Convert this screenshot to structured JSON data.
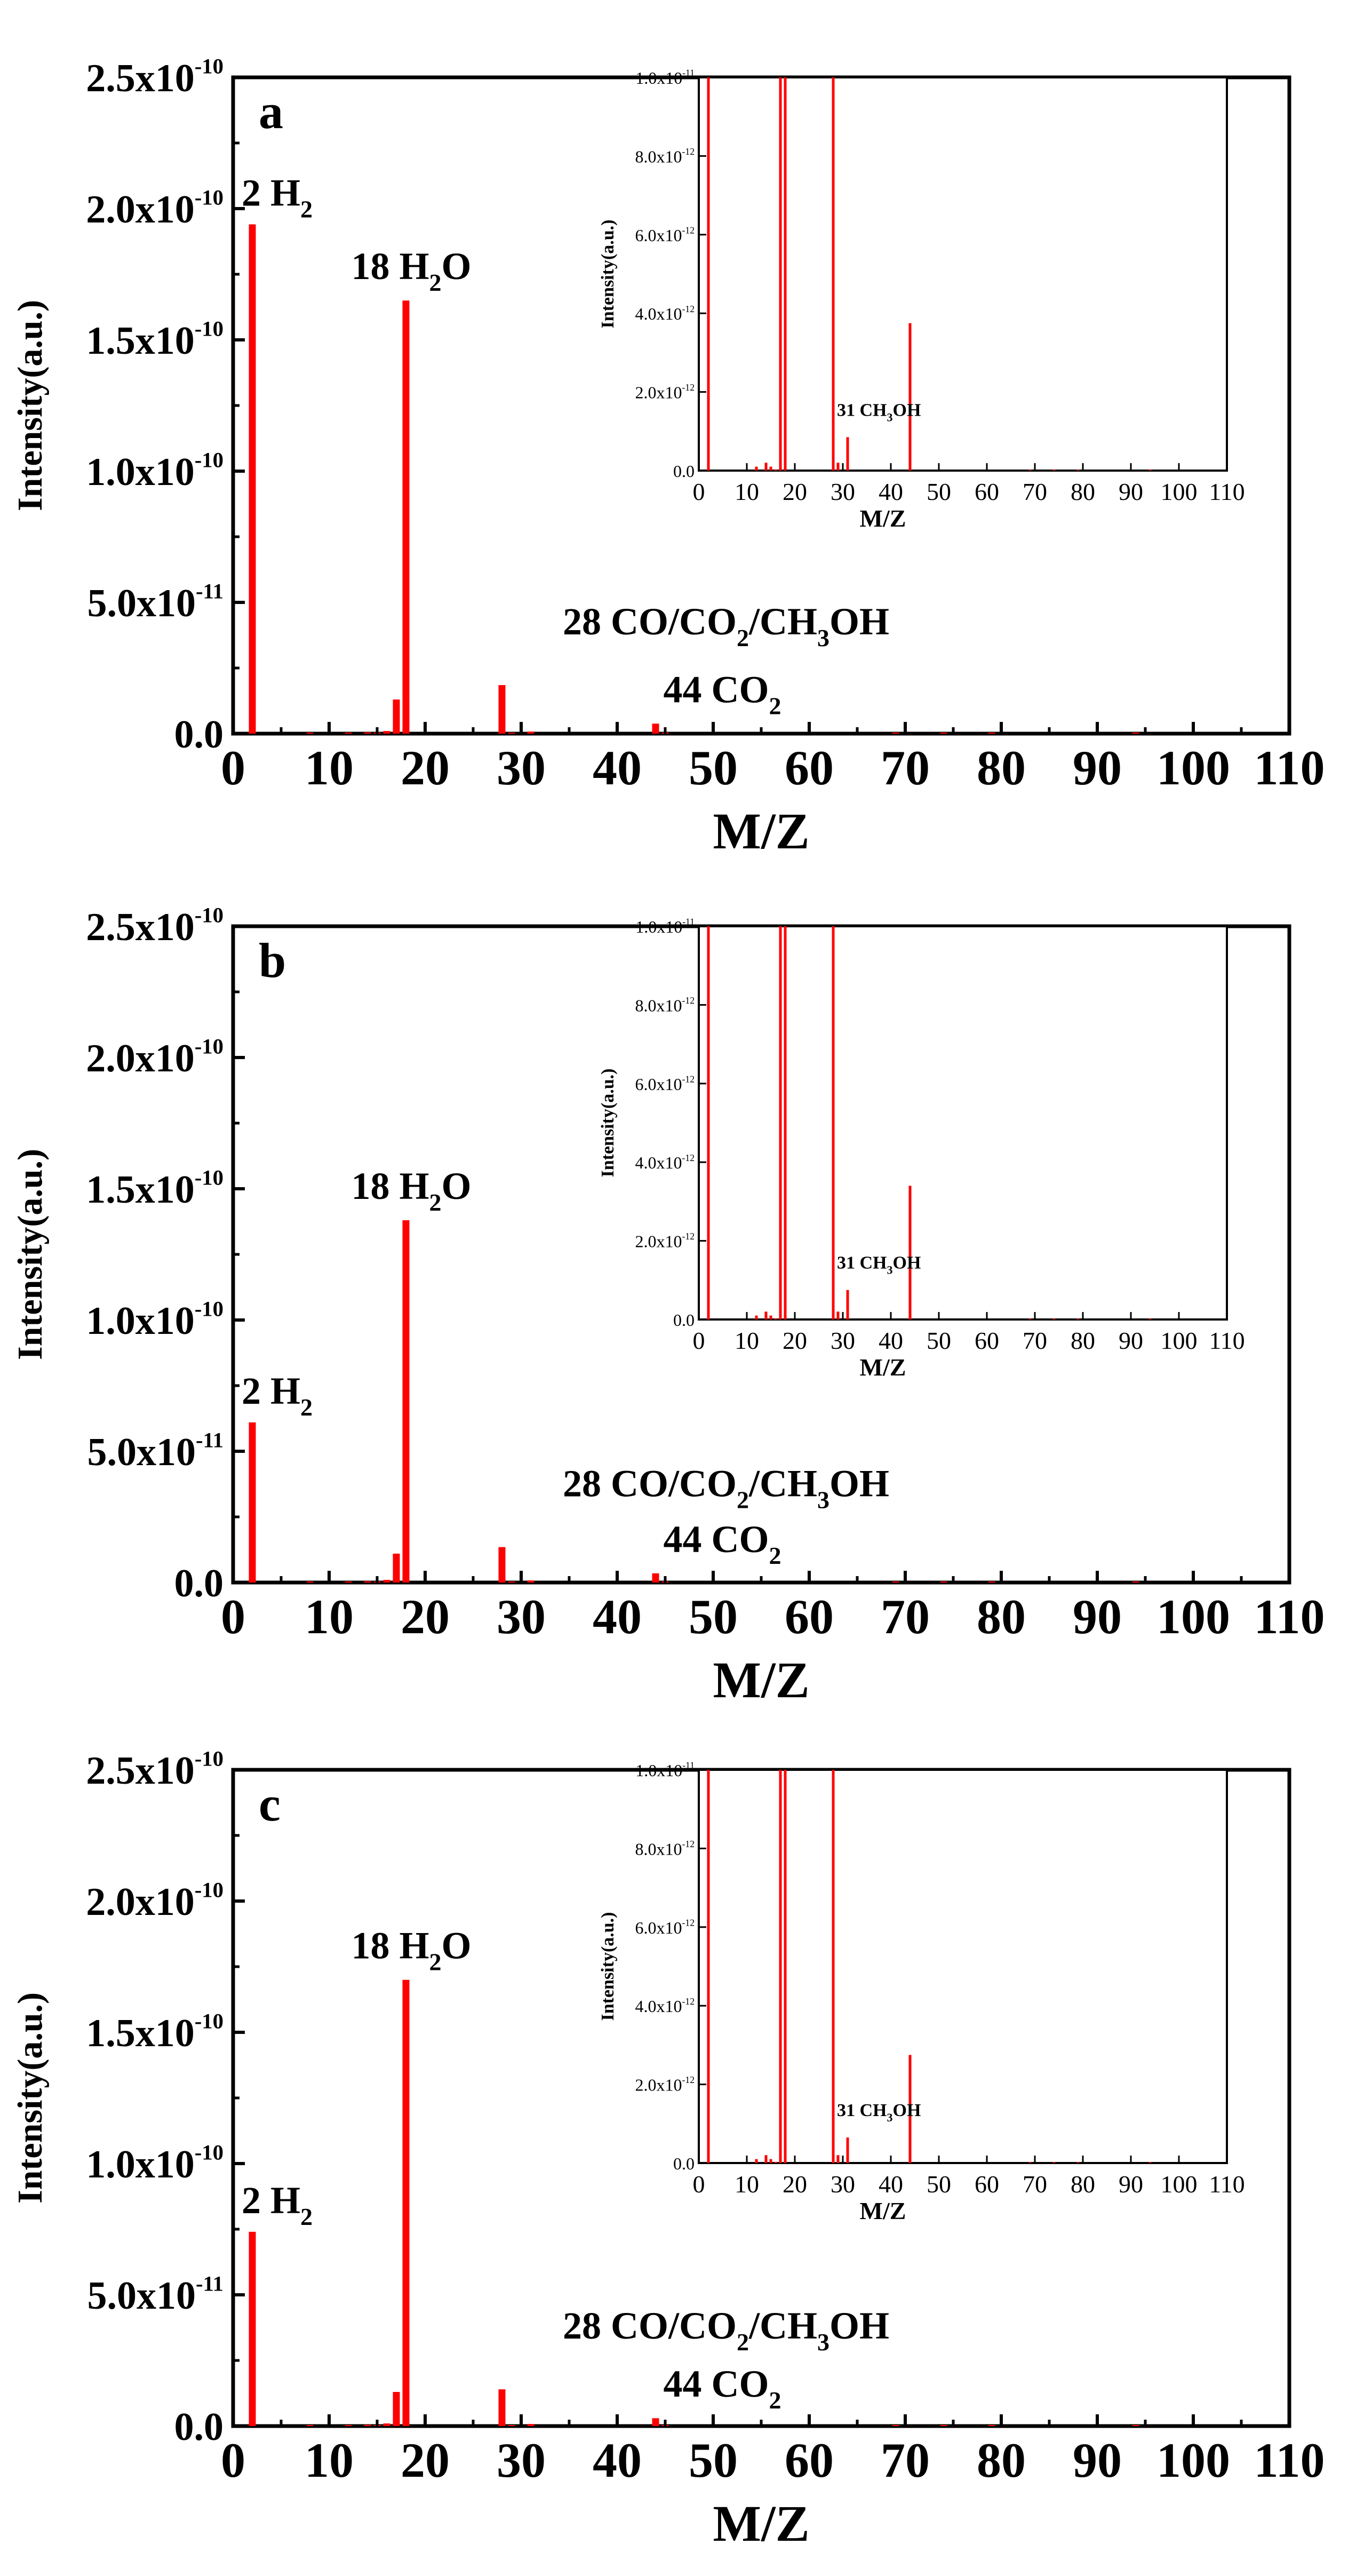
{
  "figure": {
    "description_label": "Mass spectra (intensity vs M/Z) for samples a, b, c"
  },
  "chart_data": [
    {
      "type": "bar",
      "panel": "a",
      "xlabel": "M/Z",
      "ylabel": "Intensity(a.u.)",
      "xlim": [
        0,
        110
      ],
      "ylim": [
        0,
        2.5e-10
      ],
      "xticks": [
        "0",
        "10",
        "20",
        "30",
        "40",
        "50",
        "60",
        "70",
        "80",
        "90",
        "100",
        "110"
      ],
      "yticks": [
        {
          "base": "0.0",
          "exp": ""
        },
        {
          "base": "5.0x10",
          "exp": "-11"
        },
        {
          "base": "1.0x10",
          "exp": "-10"
        },
        {
          "base": "1.5x10",
          "exp": "-10"
        },
        {
          "base": "2.0x10",
          "exp": "-10"
        },
        {
          "base": "2.5x10",
          "exp": "-10"
        }
      ],
      "x": [
        2,
        8,
        12,
        14,
        15,
        16,
        17,
        18,
        28,
        29,
        31,
        44,
        45,
        69,
        74,
        79,
        94
      ],
      "values": [
        1.94e-10,
        3e-13,
        4e-13,
        5e-13,
        3e-13,
        1e-12,
        1.3e-11,
        1.65e-10,
        1.85e-11,
        4e-13,
        8e-13,
        3.8e-12,
        2e-13,
        2e-13,
        2e-13,
        2e-13,
        2e-13
      ],
      "annotations": [
        {
          "x": 2,
          "text": "2 H",
          "sub": "2",
          "rest": ""
        },
        {
          "x": 18,
          "text": "18 H",
          "sub": "2",
          "rest": "O"
        },
        {
          "x": 28,
          "text": "28 CO/CO",
          "sub": "2",
          "rest": "/CH",
          "sub2": "3",
          "rest2": "OH"
        },
        {
          "x": 44,
          "text": "44 CO",
          "sub": "2",
          "rest": ""
        }
      ],
      "inset": {
        "xlabel": "M/Z",
        "ylabel": "Intensity(a.u.)",
        "xlim": [
          0,
          110
        ],
        "ylim": [
          0,
          1e-11
        ],
        "xticks": [
          "0",
          "10",
          "20",
          "30",
          "40",
          "50",
          "60",
          "70",
          "80",
          "90",
          "100",
          "110"
        ],
        "yticks": [
          {
            "base": "0.0",
            "exp": ""
          },
          {
            "base": "2.0x10",
            "exp": "-12"
          },
          {
            "base": "4.0x10",
            "exp": "-12"
          },
          {
            "base": "6.0x10",
            "exp": "-12"
          },
          {
            "base": "8.0x10",
            "exp": "-12"
          },
          {
            "base": "1.0x10",
            "exp": "-11"
          }
        ],
        "x": [
          2,
          12,
          14,
          15,
          16,
          17,
          18,
          28,
          29,
          31,
          44,
          69,
          74,
          79,
          94
        ],
        "values": [
          1e-11,
          1e-13,
          2e-13,
          1e-13,
          3e-14,
          1e-11,
          1e-11,
          1e-11,
          2e-13,
          8.5e-13,
          3.75e-12,
          2e-14,
          2e-14,
          2e-14,
          2e-14
        ],
        "annotation": {
          "x": 31,
          "text": "31 CH",
          "sub": "3",
          "rest": "OH"
        }
      }
    },
    {
      "type": "bar",
      "panel": "b",
      "xlabel": "M/Z",
      "ylabel": "Intensity(a.u.)",
      "xlim": [
        0,
        110
      ],
      "ylim": [
        0,
        2.5e-10
      ],
      "xticks": [
        "0",
        "10",
        "20",
        "30",
        "40",
        "50",
        "60",
        "70",
        "80",
        "90",
        "100",
        "110"
      ],
      "yticks": [
        {
          "base": "0.0",
          "exp": ""
        },
        {
          "base": "5.0x10",
          "exp": "-11"
        },
        {
          "base": "1.0x10",
          "exp": "-10"
        },
        {
          "base": "1.5x10",
          "exp": "-10"
        },
        {
          "base": "2.0x10",
          "exp": "-10"
        },
        {
          "base": "2.5x10",
          "exp": "-10"
        }
      ],
      "x": [
        2,
        8,
        12,
        14,
        15,
        16,
        17,
        18,
        28,
        29,
        31,
        44,
        45,
        69,
        74,
        79,
        94
      ],
      "values": [
        6.1e-11,
        3e-13,
        4e-13,
        5e-13,
        3e-13,
        1e-12,
        1.1e-11,
        1.38e-10,
        1.35e-11,
        4e-13,
        8e-13,
        3.5e-12,
        2e-13,
        2e-13,
        2e-13,
        2e-13,
        2e-13
      ],
      "annotations": [
        {
          "x": 2,
          "text": "2 H",
          "sub": "2",
          "rest": ""
        },
        {
          "x": 18,
          "text": "18 H",
          "sub": "2",
          "rest": "O"
        },
        {
          "x": 28,
          "text": "28 CO/CO",
          "sub": "2",
          "rest": "/CH",
          "sub2": "3",
          "rest2": "OH"
        },
        {
          "x": 44,
          "text": "44 CO",
          "sub": "2",
          "rest": ""
        }
      ],
      "inset": {
        "xlabel": "M/Z",
        "ylabel": "Intensity(a.u.)",
        "xlim": [
          0,
          110
        ],
        "ylim": [
          0,
          1e-11
        ],
        "xticks": [
          "0",
          "10",
          "20",
          "30",
          "40",
          "50",
          "60",
          "70",
          "80",
          "90",
          "100",
          "110"
        ],
        "yticks": [
          {
            "base": "0.0",
            "exp": ""
          },
          {
            "base": "2.0x10",
            "exp": "-12"
          },
          {
            "base": "4.0x10",
            "exp": "-12"
          },
          {
            "base": "6.0x10",
            "exp": "-12"
          },
          {
            "base": "8.0x10",
            "exp": "-12"
          },
          {
            "base": "1.0x10",
            "exp": "-11"
          }
        ],
        "x": [
          2,
          12,
          14,
          15,
          16,
          17,
          18,
          28,
          29,
          31,
          44,
          69,
          74,
          79,
          94
        ],
        "values": [
          1e-11,
          1e-13,
          2e-13,
          1e-13,
          3e-14,
          1e-11,
          1e-11,
          1e-11,
          2e-13,
          7.5e-13,
          3.4e-12,
          2e-14,
          2e-14,
          2e-14,
          2e-14
        ],
        "annotation": {
          "x": 31,
          "text": "31 CH",
          "sub": "3",
          "rest": "OH"
        }
      }
    },
    {
      "type": "bar",
      "panel": "c",
      "xlabel": "M/Z",
      "ylabel": "Intensity(a.u.)",
      "xlim": [
        0,
        110
      ],
      "ylim": [
        0,
        2.5e-10
      ],
      "xticks": [
        "0",
        "10",
        "20",
        "30",
        "40",
        "50",
        "60",
        "70",
        "80",
        "90",
        "100",
        "110"
      ],
      "yticks": [
        {
          "base": "0.0",
          "exp": ""
        },
        {
          "base": "5.0x10",
          "exp": "-11"
        },
        {
          "base": "1.0x10",
          "exp": "-10"
        },
        {
          "base": "1.5x10",
          "exp": "-10"
        },
        {
          "base": "2.0x10",
          "exp": "-10"
        },
        {
          "base": "2.5x10",
          "exp": "-10"
        }
      ],
      "x": [
        2,
        8,
        12,
        14,
        15,
        16,
        17,
        18,
        28,
        29,
        31,
        44,
        45,
        69,
        74,
        79,
        94
      ],
      "values": [
        7.4e-11,
        3e-13,
        4e-13,
        5e-13,
        3e-13,
        1e-12,
        1.3e-11,
        1.7e-10,
        1.4e-11,
        4e-13,
        8e-13,
        3e-12,
        2e-13,
        2e-13,
        2e-13,
        2e-13,
        2e-13
      ],
      "annotations": [
        {
          "x": 2,
          "text": "2 H",
          "sub": "2",
          "rest": ""
        },
        {
          "x": 18,
          "text": "18 H",
          "sub": "2",
          "rest": "O"
        },
        {
          "x": 28,
          "text": "28 CO/CO",
          "sub": "2",
          "rest": "/CH",
          "sub2": "3",
          "rest2": "OH"
        },
        {
          "x": 44,
          "text": "44 CO",
          "sub": "2",
          "rest": ""
        }
      ],
      "inset": {
        "xlabel": "M/Z",
        "ylabel": "Intensity(a.u.)",
        "xlim": [
          0,
          110
        ],
        "ylim": [
          0,
          1e-11
        ],
        "xticks": [
          "0",
          "10",
          "20",
          "30",
          "40",
          "50",
          "60",
          "70",
          "80",
          "90",
          "100",
          "110"
        ],
        "yticks": [
          {
            "base": "0.0",
            "exp": ""
          },
          {
            "base": "2.0x10",
            "exp": "-12"
          },
          {
            "base": "4.0x10",
            "exp": "-12"
          },
          {
            "base": "6.0x10",
            "exp": "-12"
          },
          {
            "base": "8.0x10",
            "exp": "-12"
          },
          {
            "base": "1.0x10",
            "exp": "-11"
          }
        ],
        "x": [
          2,
          12,
          14,
          15,
          16,
          17,
          18,
          28,
          29,
          31,
          44,
          69,
          74,
          79,
          94
        ],
        "values": [
          1e-11,
          1e-13,
          2e-13,
          1e-13,
          3e-14,
          1e-11,
          1e-11,
          1e-11,
          2e-13,
          6.5e-13,
          2.75e-12,
          2e-14,
          2e-14,
          2e-14,
          2e-14
        ],
        "annotation": {
          "x": 31,
          "text": "31 CH",
          "sub": "3",
          "rest": "OH"
        }
      }
    }
  ],
  "colors": {
    "bar": "#ff0000",
    "axis": "#000000",
    "background": "#ffffff"
  }
}
